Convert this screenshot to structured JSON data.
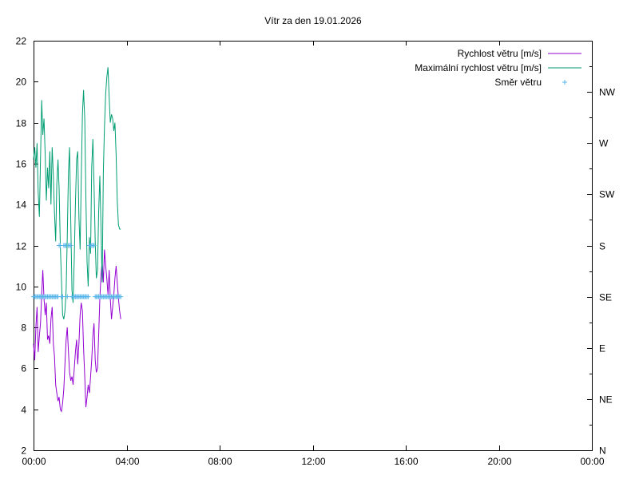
{
  "chart_data": {
    "type": "line",
    "title": "Vítr za den 19.01.2026",
    "x_unit": "hours",
    "xlim": [
      0,
      24
    ],
    "x_ticks": [
      "00:00",
      "04:00",
      "08:00",
      "12:00",
      "16:00",
      "20:00",
      "00:00"
    ],
    "ylim": [
      2,
      22
    ],
    "y_ticks": [
      2,
      4,
      6,
      8,
      10,
      12,
      14,
      16,
      18,
      20,
      22
    ],
    "y2_ticks": [
      "N",
      "NE",
      "E",
      "SE",
      "S",
      "SW",
      "W",
      "NW"
    ],
    "legend_position": "top-right",
    "grid": false,
    "series": [
      {
        "name": "Rychlost větru [m/s]",
        "color": "#9400d3",
        "style": "line",
        "x": [
          0.0,
          0.05,
          0.1,
          0.15,
          0.2,
          0.25,
          0.3,
          0.35,
          0.4,
          0.45,
          0.5,
          0.55,
          0.6,
          0.65,
          0.7,
          0.75,
          0.8,
          0.85,
          0.9,
          0.95,
          1.0,
          1.05,
          1.1,
          1.15,
          1.2,
          1.25,
          1.3,
          1.35,
          1.4,
          1.45,
          1.5,
          1.55,
          1.6,
          1.65,
          1.7,
          1.75,
          1.8,
          1.85,
          1.9,
          1.95,
          2.0,
          2.05,
          2.1,
          2.15,
          2.2,
          2.25,
          2.3,
          2.35,
          2.4,
          2.45,
          2.5,
          2.55,
          2.6,
          2.65,
          2.7,
          2.75,
          2.8,
          2.85,
          2.9,
          2.95,
          3.0,
          3.05,
          3.1,
          3.15,
          3.2,
          3.25,
          3.3,
          3.35,
          3.4,
          3.45,
          3.5,
          3.55,
          3.6,
          3.65,
          3.7,
          3.75
        ],
        "values": [
          7.2,
          6.4,
          8.0,
          9.0,
          6.8,
          7.6,
          8.2,
          9.6,
          10.8,
          9.4,
          8.6,
          9.2,
          7.4,
          7.6,
          7.2,
          8.4,
          9.0,
          7.2,
          6.6,
          5.2,
          4.8,
          4.4,
          4.6,
          4.0,
          3.9,
          4.3,
          5.0,
          6.2,
          7.4,
          8.0,
          6.8,
          5.8,
          5.4,
          5.6,
          5.2,
          6.0,
          6.8,
          7.4,
          6.2,
          7.2,
          8.6,
          9.2,
          8.8,
          7.0,
          5.6,
          4.1,
          4.6,
          5.2,
          4.8,
          5.6,
          6.4,
          7.6,
          8.2,
          6.4,
          5.8,
          6.0,
          7.6,
          9.4,
          10.6,
          11.2,
          10.2,
          11.8,
          11.0,
          10.4,
          9.6,
          10.8,
          9.4,
          8.4,
          9.0,
          9.6,
          10.4,
          11.0,
          10.2,
          9.4,
          8.8,
          8.4
        ]
      },
      {
        "name": "Maximální rychlost větru [m/s]",
        "color": "#009e73",
        "style": "line",
        "x": [
          0.0,
          0.05,
          0.1,
          0.15,
          0.2,
          0.25,
          0.3,
          0.35,
          0.4,
          0.45,
          0.5,
          0.55,
          0.6,
          0.65,
          0.7,
          0.75,
          0.8,
          0.85,
          0.9,
          0.95,
          1.0,
          1.05,
          1.1,
          1.15,
          1.2,
          1.25,
          1.3,
          1.35,
          1.4,
          1.45,
          1.5,
          1.55,
          1.6,
          1.65,
          1.7,
          1.75,
          1.8,
          1.85,
          1.9,
          1.95,
          2.0,
          2.05,
          2.1,
          2.15,
          2.2,
          2.25,
          2.3,
          2.35,
          2.4,
          2.45,
          2.5,
          2.55,
          2.6,
          2.65,
          2.7,
          2.75,
          2.8,
          2.85,
          2.9,
          2.95,
          3.0,
          3.05,
          3.1,
          3.15,
          3.2,
          3.25,
          3.3,
          3.35,
          3.4,
          3.45,
          3.5,
          3.55,
          3.6,
          3.65,
          3.7,
          3.75
        ],
        "values": [
          16.2,
          16.8,
          15.8,
          17.0,
          14.6,
          13.4,
          16.2,
          19.1,
          17.4,
          18.2,
          16.4,
          14.2,
          15.8,
          14.8,
          16.6,
          14.0,
          16.8,
          15.4,
          13.6,
          12.2,
          15.0,
          16.2,
          14.8,
          12.0,
          10.4,
          8.6,
          8.4,
          8.8,
          9.8,
          12.4,
          15.6,
          16.8,
          13.2,
          9.8,
          9.2,
          11.4,
          14.0,
          16.2,
          16.6,
          13.4,
          11.8,
          15.2,
          18.4,
          19.6,
          18.2,
          14.4,
          11.2,
          10.0,
          12.4,
          11.6,
          15.8,
          17.2,
          15.0,
          12.2,
          10.4,
          10.8,
          13.6,
          15.4,
          12.8,
          10.2,
          15.6,
          17.8,
          19.4,
          20.2,
          20.7,
          19.2,
          18.0,
          18.4,
          18.2,
          17.6,
          18.0,
          16.4,
          14.2,
          13.0,
          12.8,
          12.8
        ]
      },
      {
        "name": "Směr větru",
        "color": "#56b4e9",
        "style": "points",
        "x": [
          0.0,
          0.05,
          0.1,
          0.15,
          0.2,
          0.25,
          0.3,
          0.35,
          0.4,
          0.45,
          0.5,
          0.55,
          0.6,
          0.65,
          0.7,
          0.75,
          0.8,
          0.85,
          0.9,
          0.95,
          1.0,
          1.05,
          1.1,
          1.15,
          1.2,
          1.25,
          1.3,
          1.35,
          1.4,
          1.45,
          1.5,
          1.55,
          1.6,
          1.65,
          1.7,
          1.75,
          1.8,
          1.85,
          1.9,
          1.95,
          2.0,
          2.05,
          2.1,
          2.15,
          2.2,
          2.25,
          2.3,
          2.35,
          2.4,
          2.45,
          2.5,
          2.55,
          2.6,
          2.65,
          2.7,
          2.75,
          2.8,
          2.85,
          2.9,
          2.95,
          3.0,
          3.05,
          3.1,
          3.15,
          3.2,
          3.25,
          3.3,
          3.35,
          3.4,
          3.45,
          3.5,
          3.55,
          3.6,
          3.65,
          3.7,
          3.75
        ],
        "values": [
          "SE",
          "SE",
          "SE",
          "SE",
          "SE",
          "SE",
          "SE",
          "SE",
          "SE",
          "SE",
          "SE",
          "SE",
          "SE",
          "SE",
          "SE",
          "SE",
          "SE",
          "SE",
          "SE",
          "SE",
          "SE",
          "SE",
          "S",
          "S",
          "SE",
          "SE",
          "S",
          "S",
          "S",
          "SE",
          "S",
          "S",
          "S",
          "SE",
          "SE",
          "SE",
          "SE",
          "SE",
          "SE",
          "SE",
          "SE",
          "SE",
          "SE",
          "SE",
          "SE",
          "SE",
          "SE",
          "SE",
          "S",
          "S",
          "S",
          "S",
          "S",
          "SE",
          "SE",
          "SE",
          "SE",
          "SE",
          "SE",
          "SE",
          "SE",
          "SE",
          "SE",
          "SE",
          "SE",
          "SE",
          "SE",
          "SE",
          "SE",
          "SE",
          "SE",
          "SE",
          "SE",
          "SE",
          "SE",
          "SE"
        ]
      }
    ]
  }
}
